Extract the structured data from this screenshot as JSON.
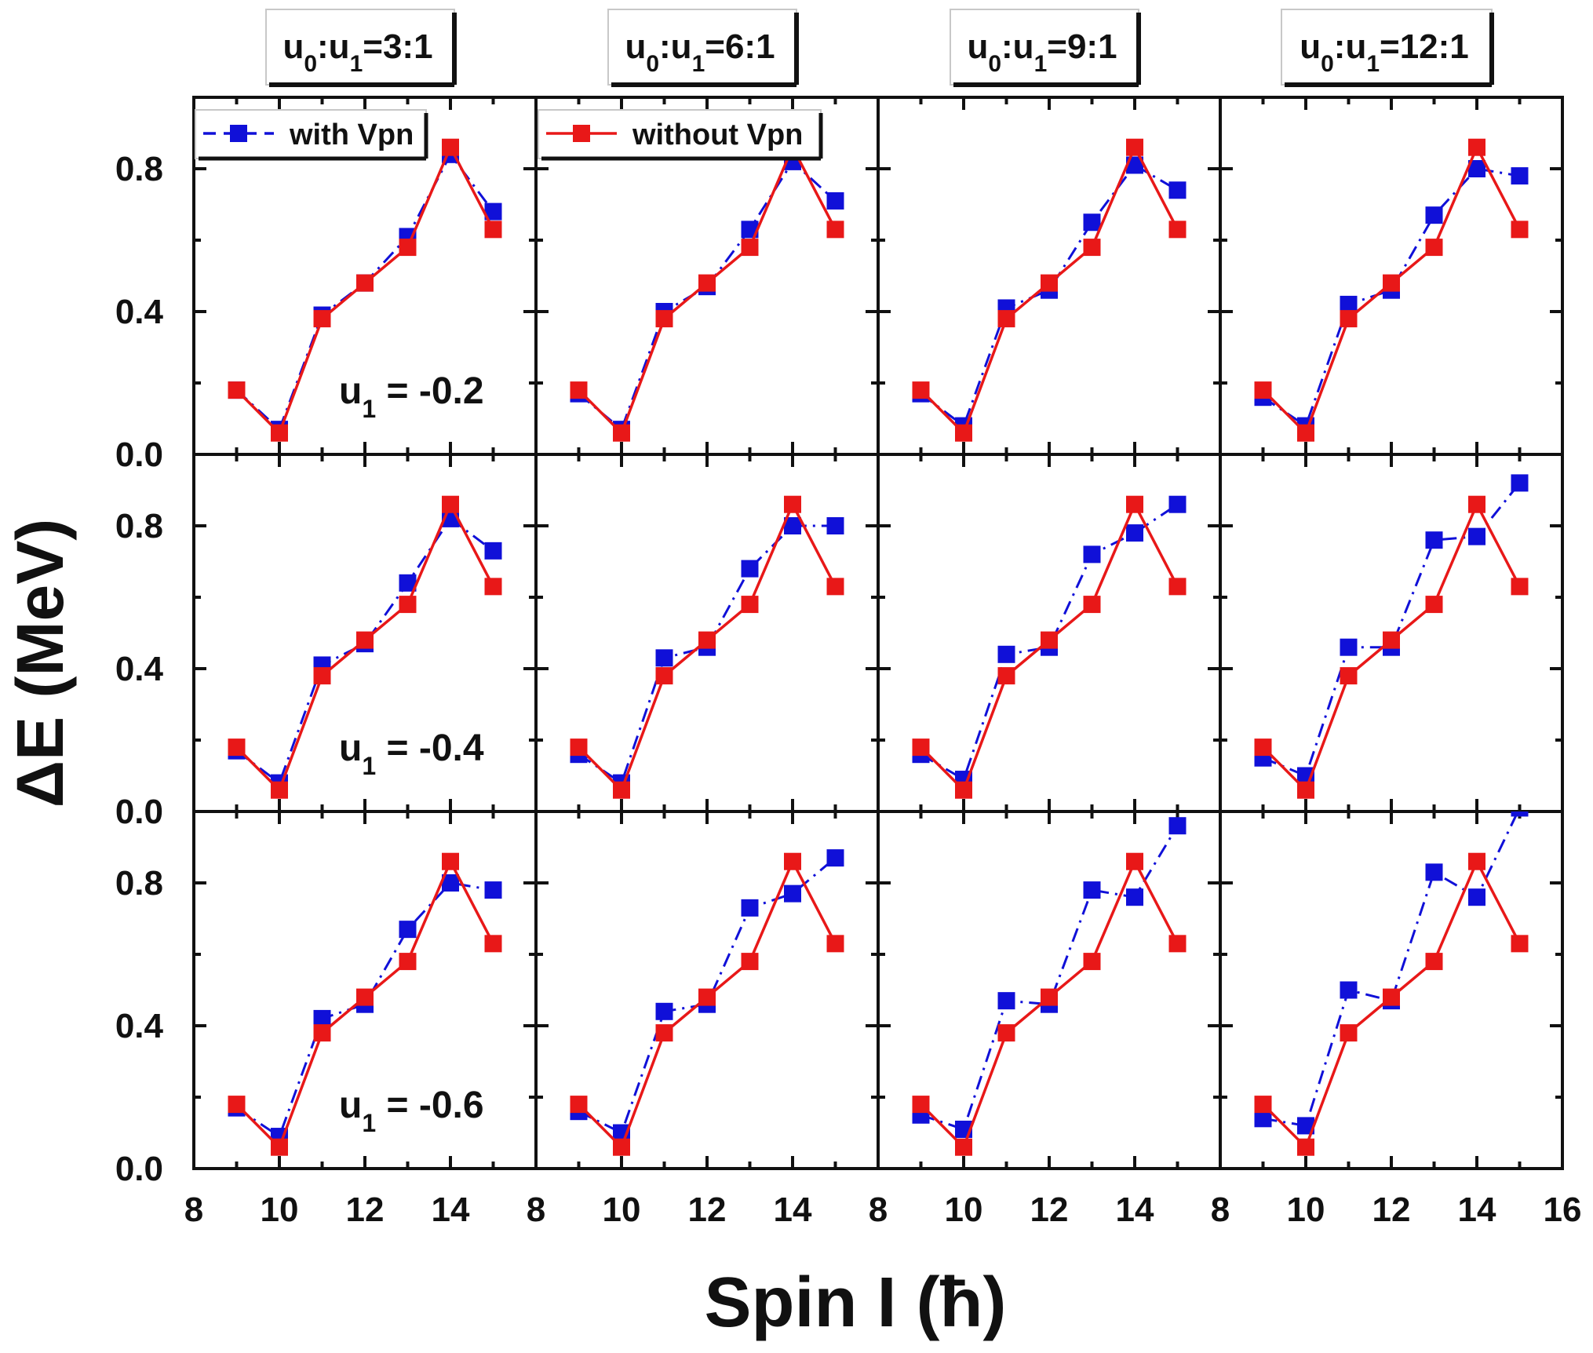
{
  "chart_data": {
    "type": "scatter",
    "xlabel": "Spin I (ħ)",
    "ylabel": "ΔE (MeV)",
    "xlim": [
      8,
      16
    ],
    "ylim": [
      0.0,
      1.0
    ],
    "x_ticks": [
      "8",
      "10",
      "12",
      "14",
      "8",
      "10",
      "12",
      "14",
      "8",
      "10",
      "12",
      "14",
      "8",
      "10",
      "12",
      "14",
      "16"
    ],
    "y_ticks": [
      "0.0",
      "0.4",
      "0.8"
    ],
    "column_titles": [
      {
        "base": "u",
        "s1": "0",
        "mid": ":u",
        "s2": "1",
        "ratio": "=3:1"
      },
      {
        "base": "u",
        "s1": "0",
        "mid": ":u",
        "s2": "1",
        "ratio": "=6:1"
      },
      {
        "base": "u",
        "s1": "0",
        "mid": ":u",
        "s2": "1",
        "ratio": "=9:1"
      },
      {
        "base": "u",
        "s1": "0",
        "mid": ":u",
        "s2": "1",
        "ratio": "=12:1"
      }
    ],
    "row_labels": [
      {
        "base": "u",
        "sub": "1",
        "rest": " = -0.2"
      },
      {
        "base": "u",
        "sub": "1",
        "rest": " = -0.4"
      },
      {
        "base": "u",
        "sub": "1",
        "rest": " = -0.6"
      }
    ],
    "legend": [
      {
        "label": "with Vpn",
        "color": "#1010d8",
        "style": "dash"
      },
      {
        "label": "without Vpn",
        "color": "#e81818",
        "style": "solid"
      }
    ],
    "x": [
      9,
      10,
      11,
      12,
      13,
      14,
      15
    ],
    "without_vpn": [
      0.18,
      0.06,
      0.38,
      0.48,
      0.58,
      0.86,
      0.63
    ],
    "with_vpn": [
      [
        [
          0.18,
          0.07,
          0.39,
          0.48,
          0.61,
          0.84,
          0.68
        ],
        [
          0.17,
          0.07,
          0.4,
          0.47,
          0.63,
          0.82,
          0.71
        ],
        [
          0.17,
          0.08,
          0.41,
          0.46,
          0.65,
          0.81,
          0.74
        ],
        [
          0.16,
          0.08,
          0.42,
          0.46,
          0.67,
          0.8,
          0.78
        ]
      ],
      [
        [
          0.17,
          0.08,
          0.41,
          0.47,
          0.64,
          0.82,
          0.73
        ],
        [
          0.16,
          0.08,
          0.43,
          0.46,
          0.68,
          0.8,
          0.8
        ],
        [
          0.16,
          0.09,
          0.44,
          0.46,
          0.72,
          0.78,
          0.86
        ],
        [
          0.15,
          0.1,
          0.46,
          0.46,
          0.76,
          0.77,
          0.92
        ]
      ],
      [
        [
          0.17,
          0.09,
          0.42,
          0.46,
          0.67,
          0.8,
          0.78
        ],
        [
          0.16,
          0.1,
          0.44,
          0.46,
          0.73,
          0.77,
          0.87
        ],
        [
          0.15,
          0.11,
          0.47,
          0.46,
          0.78,
          0.76,
          0.96
        ],
        [
          0.14,
          0.12,
          0.5,
          0.47,
          0.83,
          0.76,
          1.01
        ]
      ]
    ],
    "colors": {
      "with_vpn": "#1010d8",
      "without_vpn": "#e81818",
      "axes": "#111111"
    }
  }
}
